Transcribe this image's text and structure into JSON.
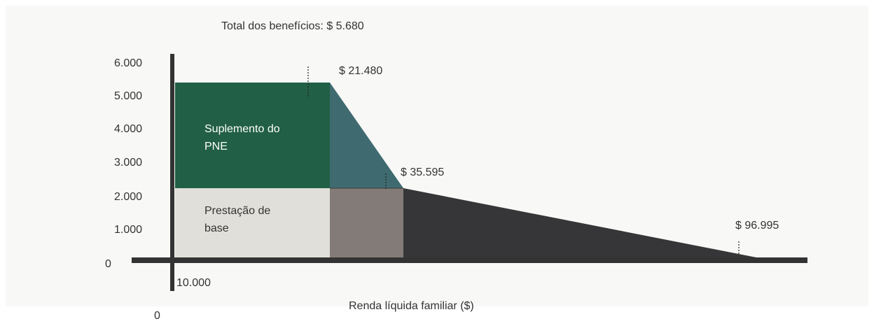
{
  "title": "Total dos benefícios: $ 5.680",
  "y_axis": {
    "labels": [
      "6.000",
      "5.000",
      "4.000",
      "3.000",
      "2.000",
      "1.000",
      "0"
    ]
  },
  "x_axis": {
    "label": "Renda líquida familiar ($)",
    "start_label": "10.000",
    "origin_label": "0"
  },
  "annotations": [
    "$ 21.480",
    "$ 35.595",
    "$ 96.995"
  ],
  "regions": {
    "supplement": [
      "Suplemento do",
      "PNE"
    ],
    "base": [
      "Prestação de",
      "base"
    ]
  }
}
